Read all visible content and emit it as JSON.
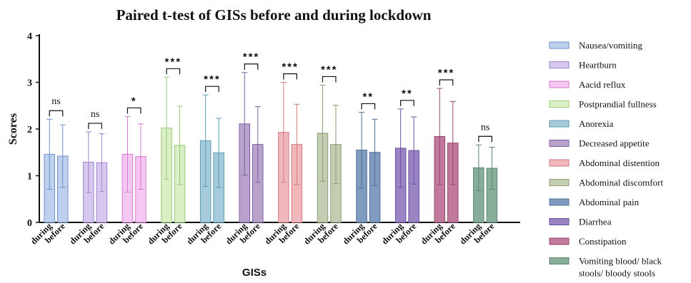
{
  "chart_data": {
    "type": "bar",
    "title": "Paired t-test of GISs before and during lockdown",
    "xlabel": "GISs",
    "ylabel": "Scores",
    "ylim": [
      0,
      4
    ],
    "yticks": [
      "0",
      "1",
      "2",
      "3",
      "4"
    ],
    "pair_labels": [
      "during",
      "before"
    ],
    "legend_position": "right",
    "groups": [
      {
        "name": "Nausea/vomiting",
        "color": "#bdd0ee",
        "stroke": "#6f8fc8",
        "during": 1.46,
        "during_sd": 0.75,
        "before": 1.42,
        "before_sd": 0.67,
        "sig": "ns"
      },
      {
        "name": "Heartburn",
        "color": "#d6c8ee",
        "stroke": "#9d83cc",
        "during": 1.29,
        "during_sd": 0.65,
        "before": 1.28,
        "before_sd": 0.62,
        "sig": "ns"
      },
      {
        "name": "Aacid reflux",
        "color": "#f5c8f2",
        "stroke": "#d47ad0",
        "during": 1.46,
        "during_sd": 0.81,
        "before": 1.41,
        "before_sd": 0.7,
        "sig": "*"
      },
      {
        "name": "Postprandial fullness",
        "color": "#daefc4",
        "stroke": "#9cc97a",
        "during": 2.02,
        "during_sd": 1.09,
        "before": 1.65,
        "before_sd": 0.84,
        "sig": "***"
      },
      {
        "name": "Anorexia",
        "color": "#a6ccdb",
        "stroke": "#5e9ab3",
        "during": 1.75,
        "during_sd": 0.98,
        "before": 1.49,
        "before_sd": 0.74,
        "sig": "***"
      },
      {
        "name": "Decreased appetite",
        "color": "#b9a3cc",
        "stroke": "#7e62a0",
        "during": 2.11,
        "during_sd": 1.1,
        "before": 1.67,
        "before_sd": 0.81,
        "sig": "***"
      },
      {
        "name": "Abdominal distention",
        "color": "#f0b8bc",
        "stroke": "#d47a80",
        "during": 1.93,
        "during_sd": 1.07,
        "before": 1.67,
        "before_sd": 0.86,
        "sig": "***"
      },
      {
        "name": "Abdominal discomfort",
        "color": "#c3cdb1",
        "stroke": "#8e9b76",
        "during": 1.91,
        "during_sd": 1.03,
        "before": 1.67,
        "before_sd": 0.84,
        "sig": "***"
      },
      {
        "name": "Abdominal pain",
        "color": "#7f9cc0",
        "stroke": "#4f6f98",
        "during": 1.55,
        "during_sd": 0.81,
        "before": 1.5,
        "before_sd": 0.71,
        "sig": "**"
      },
      {
        "name": "Diarrhea",
        "color": "#9a84c4",
        "stroke": "#6a51a0",
        "during": 1.59,
        "during_sd": 0.84,
        "before": 1.54,
        "before_sd": 0.72,
        "sig": "**"
      },
      {
        "name": "Constipation",
        "color": "#c17a9c",
        "stroke": "#94476d",
        "during": 1.84,
        "during_sd": 1.03,
        "before": 1.7,
        "before_sd": 0.89,
        "sig": "***"
      },
      {
        "name": "Vomiting blood/ black stools/ bloody stools",
        "color": "#88ae9a",
        "stroke": "#5b8570",
        "during": 1.17,
        "during_sd": 0.49,
        "before": 1.16,
        "before_sd": 0.45,
        "sig": "ns"
      }
    ]
  }
}
